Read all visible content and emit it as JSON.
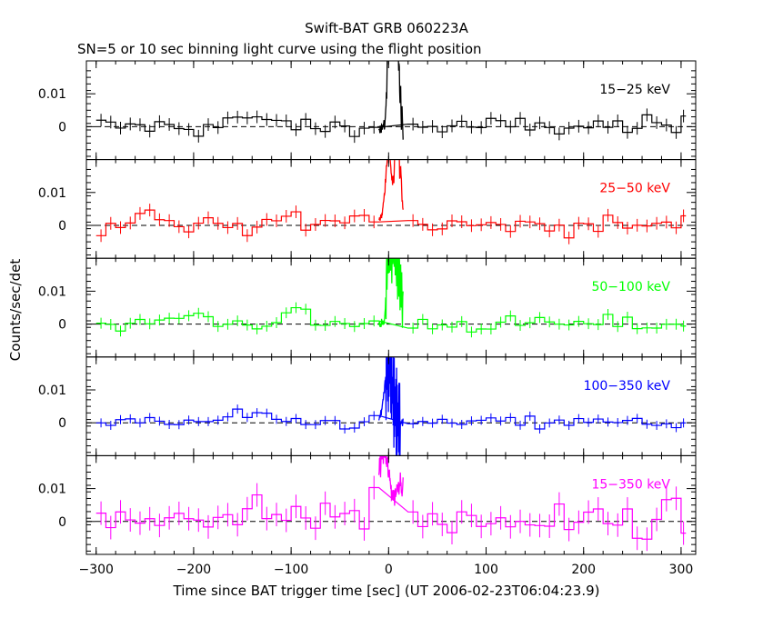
{
  "title": "Swift-BAT GRB 060223A",
  "subtitle": "SN=5 or 10 sec binning light curve using the flight position",
  "xlabel": "Time since BAT trigger time [sec] (UT 2006-02-23T06:04:23.9)",
  "ylabel": "Counts/sec/det",
  "chart_data": {
    "type": "line",
    "xlim": [
      -310,
      315
    ],
    "x_ticks": [
      -300,
      -200,
      -100,
      0,
      100,
      200,
      300
    ],
    "x_tick_labels": [
      "−300",
      "−200",
      "−100",
      "0",
      "100",
      "200",
      "300"
    ],
    "ylim": [
      -0.01,
      0.02
    ],
    "y_ticks": [
      0.01,
      0
    ],
    "y_tick_labels": [
      "0.01",
      "0"
    ],
    "zero_line": "dashed",
    "panels": [
      {
        "name": "15−25 keV",
        "color": "#000000",
        "noise": 0.0035,
        "peaks": [
          [
            0,
            0.032,
            1.5
          ],
          [
            4,
            0.03,
            1.5
          ],
          [
            7,
            0.025,
            2
          ],
          [
            10,
            0.014,
            2
          ]
        ],
        "bumps": [
          [
            -160,
            0.004,
            5
          ],
          [
            -125,
            0.003,
            10
          ]
        ],
        "fast": [
          [
            -2,
            15,
            1.5,
            0.004
          ]
        ]
      },
      {
        "name": "25−50 keV",
        "color": "#ff0000",
        "noise": 0.0035,
        "peaks": [
          [
            0,
            0.022,
            3
          ],
          [
            8,
            0.025,
            2
          ],
          [
            12,
            0.013,
            2
          ]
        ],
        "bumps": [
          [
            -250,
            0.004,
            15
          ],
          [
            -120,
            0.004,
            8
          ],
          [
            -20,
            0.003,
            15
          ]
        ],
        "fast": [
          [
            5,
            13,
            2,
            0.004
          ]
        ]
      },
      {
        "name": "50−100 keV",
        "color": "#00ff00",
        "noise": 0.003,
        "peaks": [
          [
            0,
            0.022,
            2
          ],
          [
            5,
            0.02,
            2
          ],
          [
            10,
            0.015,
            3
          ]
        ],
        "bumps": [
          [
            -200,
            0.003,
            15
          ],
          [
            -100,
            0.004,
            12
          ]
        ],
        "fast": [
          [
            -3,
            15,
            1.2,
            0.008
          ]
        ]
      },
      {
        "name": "100−350 keV",
        "color": "#0000ff",
        "noise": 0.0025,
        "peaks": [
          [
            0,
            0.018,
            4
          ]
        ],
        "bumps": [
          [
            -150,
            0.003,
            12
          ]
        ],
        "fast": [
          [
            -3,
            12,
            0.8,
            0.014
          ]
        ]
      },
      {
        "name": "15−350 keV",
        "color": "#ff00ff",
        "noise": 0.0065,
        "peaks": [
          [
            -5,
            0.02,
            6
          ],
          [
            12,
            0.012,
            4
          ]
        ],
        "bumps": [
          [
            -200,
            0.004,
            20
          ],
          [
            -120,
            0.003,
            20
          ],
          [
            -40,
            0.003,
            20
          ]
        ],
        "fast": []
      }
    ]
  }
}
